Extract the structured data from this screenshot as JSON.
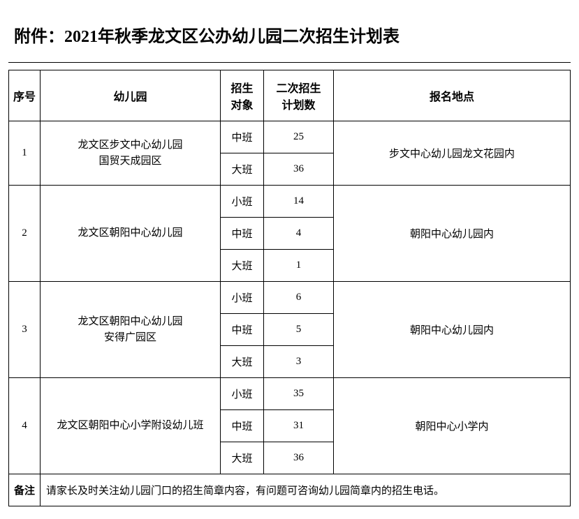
{
  "title": "附件：2021年秋季龙文区公办幼儿园二次招生计划表",
  "headers": {
    "seq": "序号",
    "school": "幼儿园",
    "target": "招生\n对象",
    "plan": "二次招生\n计划数",
    "location": "报名地点"
  },
  "rows": [
    {
      "seq": "1",
      "school_lines": [
        "龙文区步文中心幼儿园",
        "国贸天成园区"
      ],
      "classes": [
        {
          "target": "中班",
          "plan": "25"
        },
        {
          "target": "大班",
          "plan": "36"
        }
      ],
      "location": "步文中心幼儿园龙文花园内"
    },
    {
      "seq": "2",
      "school_lines": [
        "龙文区朝阳中心幼儿园"
      ],
      "classes": [
        {
          "target": "小班",
          "plan": "14"
        },
        {
          "target": "中班",
          "plan": "4"
        },
        {
          "target": "大班",
          "plan": "1"
        }
      ],
      "location": "朝阳中心幼儿园内"
    },
    {
      "seq": "3",
      "school_lines": [
        "龙文区朝阳中心幼儿园",
        "安得广园区"
      ],
      "classes": [
        {
          "target": "小班",
          "plan": "6"
        },
        {
          "target": "中班",
          "plan": "5"
        },
        {
          "target": "大班",
          "plan": "3"
        }
      ],
      "location": "朝阳中心幼儿园内"
    },
    {
      "seq": "4",
      "school_lines": [
        "龙文区朝阳中心小学附设幼儿班"
      ],
      "classes": [
        {
          "target": "小班",
          "plan": "35"
        },
        {
          "target": "中班",
          "plan": "31"
        },
        {
          "target": "大班",
          "plan": "36"
        }
      ],
      "location": "朝阳中心小学内"
    }
  ],
  "note": {
    "label": "备注",
    "text": "请家长及时关注幼儿园门口的招生简章内容，有问题可咨询幼儿园简章内的招生电话。"
  },
  "colors": {
    "border": "#000000",
    "background": "#ffffff",
    "text": "#000000"
  }
}
